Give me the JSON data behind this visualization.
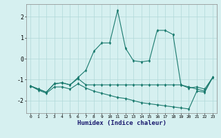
{
  "xlabel": "Humidex (Indice chaleur)",
  "x": [
    0,
    1,
    2,
    3,
    4,
    5,
    6,
    7,
    8,
    9,
    10,
    11,
    12,
    13,
    14,
    15,
    16,
    17,
    18,
    19,
    20,
    21,
    22,
    23
  ],
  "line1": [
    -1.3,
    -1.45,
    -1.6,
    -1.2,
    -1.15,
    -1.25,
    -0.9,
    -0.55,
    0.35,
    0.75,
    0.75,
    2.3,
    0.5,
    -0.1,
    -0.15,
    -0.1,
    1.35,
    1.35,
    1.15,
    -1.25,
    -1.4,
    -1.35,
    -1.45,
    -0.9
  ],
  "line2": [
    -1.3,
    -1.45,
    -1.6,
    -1.2,
    -1.15,
    -1.25,
    -0.95,
    -1.25,
    -1.25,
    -1.25,
    -1.25,
    -1.25,
    -1.25,
    -1.25,
    -1.25,
    -1.25,
    -1.25,
    -1.25,
    -1.25,
    -1.25,
    -1.35,
    -1.45,
    -1.55,
    -0.9
  ],
  "line3": [
    -1.3,
    -1.5,
    -1.65,
    -1.35,
    -1.35,
    -1.45,
    -1.2,
    -1.4,
    -1.55,
    -1.65,
    -1.75,
    -1.85,
    -1.9,
    -2.0,
    -2.1,
    -2.15,
    -2.2,
    -2.25,
    -2.3,
    -2.35,
    -2.4,
    -1.55,
    -1.6,
    -0.9
  ],
  "ylim": [
    -2.6,
    2.6
  ],
  "xlim": [
    -0.5,
    23.5
  ],
  "yticks": [
    -2,
    -1,
    0,
    1,
    2
  ],
  "xticks": [
    0,
    1,
    2,
    3,
    4,
    5,
    6,
    7,
    8,
    9,
    10,
    11,
    12,
    13,
    14,
    15,
    16,
    17,
    18,
    19,
    20,
    21,
    22,
    23
  ],
  "line_color": "#1a7a6e",
  "bg_color": "#d6f0f0",
  "grid_color": "#b0d8d8"
}
